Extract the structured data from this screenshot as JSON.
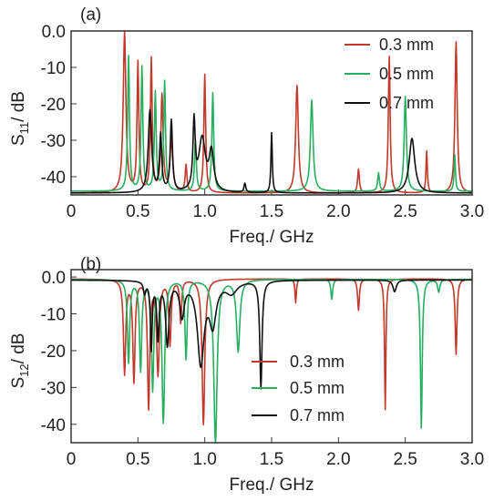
{
  "chart_data": [
    {
      "panel_label": "(a)",
      "type": "line",
      "xlabel": "Freq./ GHz",
      "ylabel_main": "S",
      "ylabel_sub": "11",
      "ylabel_unit": "/ dB",
      "xlim": [
        0,
        3.0
      ],
      "ylim": [
        -45,
        0
      ],
      "xticks": [
        "0",
        "0.5",
        "1.0",
        "1.5",
        "2.0",
        "2.5",
        "3.0"
      ],
      "yticks": [
        "0.0",
        "-10",
        "-20",
        "-30",
        "-40"
      ],
      "legend_position": "top-right",
      "series": [
        {
          "name": "0.3 mm",
          "color": "#c0392b",
          "base": -44.5,
          "peaks": [
            [
              0.4,
              -0.5,
              0.012
            ],
            [
              0.5,
              -9,
              0.008
            ],
            [
              0.6,
              -8,
              0.008
            ],
            [
              0.68,
              -18,
              0.01
            ],
            [
              0.75,
              -30,
              0.012
            ],
            [
              0.86,
              -37,
              0.008
            ],
            [
              1.0,
              -12,
              0.008
            ],
            [
              1.69,
              -15,
              0.012
            ],
            [
              2.15,
              -38,
              0.008
            ],
            [
              2.38,
              -7,
              0.008
            ],
            [
              2.66,
              -33,
              0.006
            ],
            [
              2.88,
              -3,
              0.01
            ]
          ]
        },
        {
          "name": "0.5 mm",
          "color": "#27ae60",
          "base": -44.0,
          "peaks": [
            [
              0.43,
              -7,
              0.008
            ],
            [
              0.53,
              -10,
              0.008
            ],
            [
              0.63,
              -17,
              0.008
            ],
            [
              0.7,
              -14,
              0.008
            ],
            [
              0.93,
              -30,
              0.008
            ],
            [
              1.06,
              -17,
              0.008
            ],
            [
              1.8,
              -19,
              0.012
            ],
            [
              2.3,
              -39,
              0.008
            ],
            [
              2.5,
              -18,
              0.01
            ],
            [
              2.87,
              -34,
              0.006
            ]
          ]
        },
        {
          "name": "0.7 mm",
          "color": "#111111",
          "base": -44.5,
          "peaks": [
            [
              0.59,
              -22,
              0.015
            ],
            [
              0.67,
              -29,
              0.01
            ],
            [
              0.75,
              -25,
              0.01
            ],
            [
              0.92,
              -26,
              0.01
            ],
            [
              0.98,
              -30,
              0.03
            ],
            [
              1.05,
              -34,
              0.02
            ],
            [
              1.3,
              -42,
              0.008
            ],
            [
              1.5,
              -28,
              0.006
            ],
            [
              2.55,
              -29.5,
              0.025
            ]
          ]
        }
      ]
    },
    {
      "panel_label": "(b)",
      "type": "line",
      "xlabel": "Freq./ GHz",
      "ylabel_main": "S",
      "ylabel_sub": "12",
      "ylabel_unit": "/ dB",
      "xlim": [
        0,
        3.0
      ],
      "ylim": [
        -45,
        2
      ],
      "xticks": [
        "0",
        "0.5",
        "1.0",
        "1.5",
        "2.0",
        "2.5",
        "3.0"
      ],
      "yticks": [
        "0.0",
        "-10",
        "-20",
        "-30",
        "-40"
      ],
      "legend_position": "center",
      "series": [
        {
          "name": "0.3 mm",
          "color": "#c0392b",
          "base": -0.5,
          "peaks": [
            [
              0.4,
              -26,
              0.01
            ],
            [
              0.47,
              -28,
              0.01
            ],
            [
              0.58,
              -35,
              0.01
            ],
            [
              0.65,
              -26,
              0.012
            ],
            [
              0.74,
              -18,
              0.01
            ],
            [
              0.82,
              -12,
              0.008
            ],
            [
              0.99,
              -40,
              0.012
            ],
            [
              1.68,
              -7,
              0.006
            ],
            [
              2.15,
              -9,
              0.008
            ],
            [
              2.35,
              -36,
              0.006
            ],
            [
              2.88,
              -21,
              0.008
            ]
          ]
        },
        {
          "name": "0.5 mm",
          "color": "#27ae60",
          "base": -0.6,
          "peaks": [
            [
              0.43,
              -23,
              0.01
            ],
            [
              0.52,
              -25,
              0.01
            ],
            [
              0.61,
              -30,
              0.01
            ],
            [
              0.69,
              -39,
              0.012
            ],
            [
              0.86,
              -22,
              0.01
            ],
            [
              1.08,
              -45,
              0.015
            ],
            [
              1.25,
              -20,
              0.015
            ],
            [
              1.95,
              -6,
              0.008
            ],
            [
              2.62,
              -41,
              0.008
            ],
            [
              2.75,
              -4,
              0.01
            ]
          ]
        },
        {
          "name": "0.7 mm",
          "color": "#111111",
          "base": -0.8,
          "peaks": [
            [
              0.55,
              -4,
              0.01
            ],
            [
              0.6,
              -19,
              0.008
            ],
            [
              0.65,
              -16,
              0.01
            ],
            [
              0.72,
              -18,
              0.015
            ],
            [
              0.83,
              -10,
              0.02
            ],
            [
              0.97,
              -23,
              0.03
            ],
            [
              1.06,
              -12,
              0.03
            ],
            [
              1.2,
              -4,
              0.05
            ],
            [
              1.42,
              -30,
              0.01
            ],
            [
              2.42,
              -4,
              0.015
            ]
          ]
        }
      ]
    }
  ]
}
